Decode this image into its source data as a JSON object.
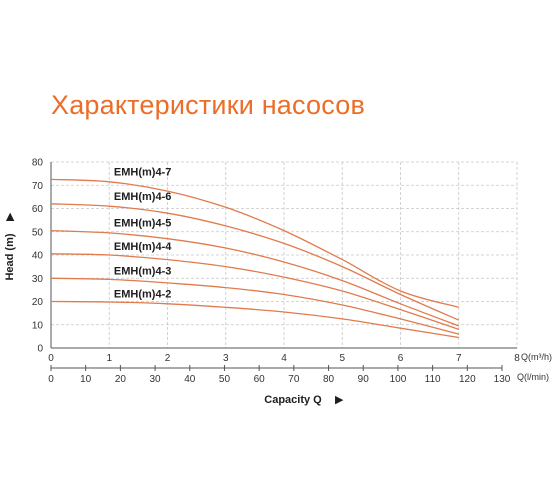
{
  "page": {
    "title": "Характеристики насосов"
  },
  "chart_data": {
    "type": "line",
    "ylabel": "Head (m)",
    "xlabel": "Capacity Q",
    "ylim": [
      0,
      80
    ],
    "yticks": [
      0,
      10,
      20,
      30,
      40,
      50,
      60,
      70,
      80
    ],
    "x_primary": {
      "unit": "Q(m³/h)",
      "range": [
        0,
        8
      ],
      "ticks": [
        0,
        1,
        2,
        3,
        4,
        5,
        6,
        7,
        8
      ]
    },
    "x_secondary": {
      "unit": "Q(l/min)",
      "range": [
        0,
        130
      ],
      "ticks": [
        0,
        10,
        20,
        30,
        40,
        50,
        60,
        70,
        80,
        90,
        100,
        110,
        120,
        130
      ]
    },
    "grid": true,
    "colors": {
      "curve": "#e07b4c",
      "accent": "#ec6d28",
      "grid": "#c8c8c8",
      "axis": "#555555"
    },
    "series": [
      {
        "name": "EMH(m)4-7",
        "points": [
          [
            0,
            72.5
          ],
          [
            1,
            71.5
          ],
          [
            2,
            67.5
          ],
          [
            3,
            60.5
          ],
          [
            4,
            50.5
          ],
          [
            5,
            38
          ],
          [
            6,
            24.5
          ],
          [
            7,
            17.5
          ]
        ]
      },
      {
        "name": "EMH(m)4-6",
        "points": [
          [
            0,
            62
          ],
          [
            1,
            61
          ],
          [
            2,
            58
          ],
          [
            3,
            52.5
          ],
          [
            4,
            45
          ],
          [
            5,
            35
          ],
          [
            6,
            23
          ],
          [
            7,
            12
          ]
        ]
      },
      {
        "name": "EMH(m)4-5",
        "points": [
          [
            0,
            50.5
          ],
          [
            1,
            49.5
          ],
          [
            2,
            47
          ],
          [
            3,
            43
          ],
          [
            4,
            37
          ],
          [
            5,
            29
          ],
          [
            6,
            19
          ],
          [
            7,
            9.5
          ]
        ]
      },
      {
        "name": "EMH(m)4-4",
        "points": [
          [
            0,
            40.5
          ],
          [
            1,
            40
          ],
          [
            2,
            38
          ],
          [
            3,
            35
          ],
          [
            4,
            30.5
          ],
          [
            5,
            24.5
          ],
          [
            6,
            16.5
          ],
          [
            7,
            8
          ]
        ]
      },
      {
        "name": "EMH(m)4-3",
        "points": [
          [
            0,
            30
          ],
          [
            1,
            29.5
          ],
          [
            2,
            28
          ],
          [
            3,
            26
          ],
          [
            4,
            23
          ],
          [
            5,
            18.5
          ],
          [
            6,
            12.5
          ],
          [
            7,
            6
          ]
        ]
      },
      {
        "name": "EMH(m)4-2",
        "points": [
          [
            0,
            20
          ],
          [
            1,
            19.8
          ],
          [
            2,
            19
          ],
          [
            3,
            17.5
          ],
          [
            4,
            15.5
          ],
          [
            5,
            12.5
          ],
          [
            6,
            8.5
          ],
          [
            7,
            4.5
          ]
        ]
      }
    ]
  }
}
